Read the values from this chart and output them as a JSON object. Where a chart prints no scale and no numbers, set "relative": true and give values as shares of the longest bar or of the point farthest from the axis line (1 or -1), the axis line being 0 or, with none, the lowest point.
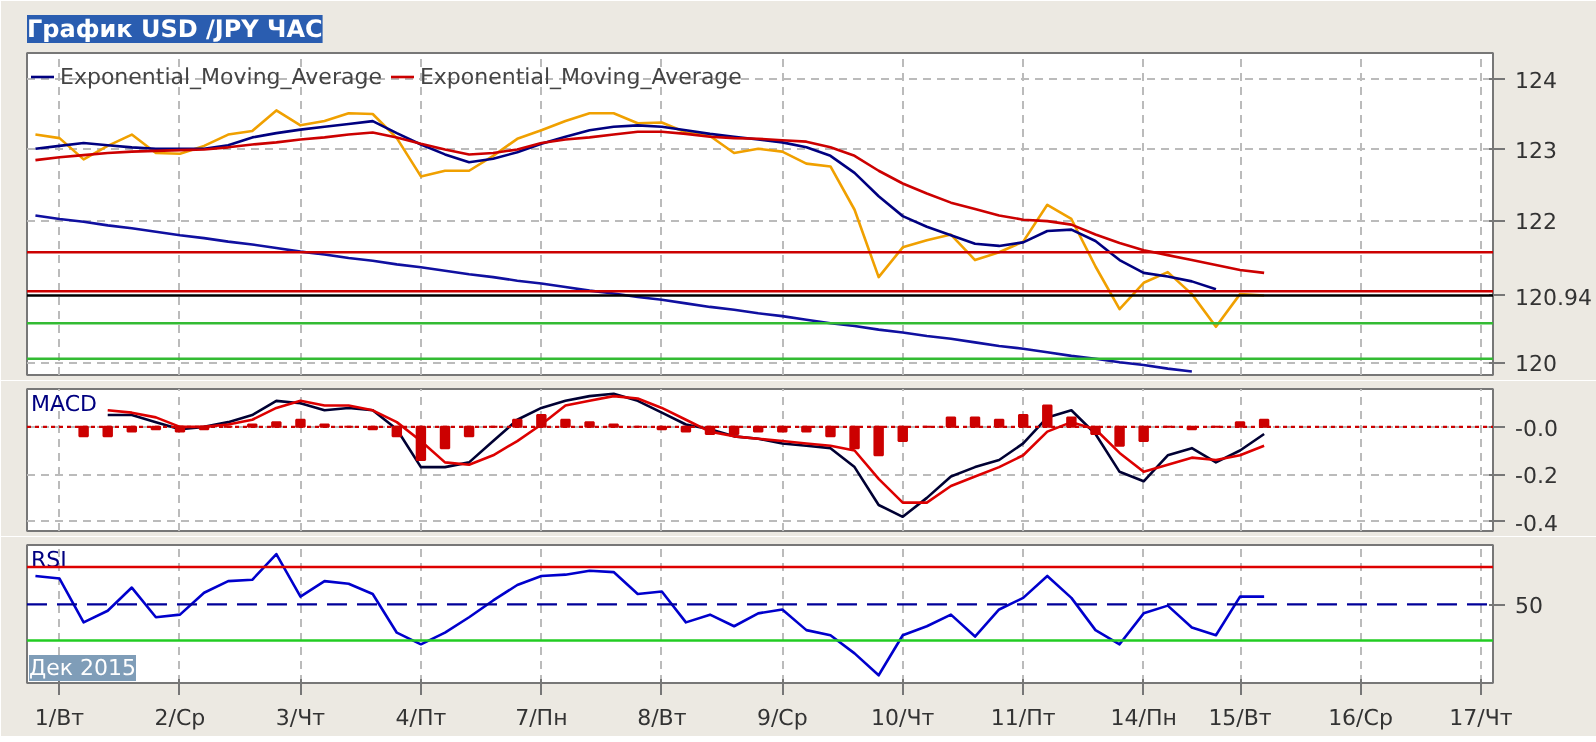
{
  "chart_data": [
    {
      "type": "line",
      "title": "График USD /JPY ЧАС",
      "ylim": [
        119.82,
        124.36
      ],
      "yticks": [
        120,
        122,
        123,
        124
      ],
      "tick_labels": "y",
      "grid": true,
      "legend": "top left",
      "categories": [
        null,
        null,
        null,
        null,
        null,
        null,
        null,
        null,
        null,
        null,
        null,
        null,
        null,
        null,
        null,
        null,
        null,
        null,
        null,
        null,
        null,
        null,
        null,
        null,
        null,
        null,
        null,
        null,
        null,
        null,
        null,
        null,
        null,
        null,
        null,
        null,
        null,
        null,
        null,
        null,
        null,
        null,
        null,
        null,
        null,
        null,
        null,
        null,
        null,
        null,
        null,
        null,
        null,
        null,
        null,
        null,
        null,
        null,
        null,
        null,
        null
      ],
      "series": [
        {
          "color": "#f0a000",
          "values": [
            123.21,
            123.16,
            122.86,
            123.05,
            123.21,
            122.95,
            122.94,
            123.05,
            123.21,
            123.26,
            123.55,
            123.34,
            123.4,
            123.51,
            123.5,
            123.16,
            122.62,
            122.7,
            122.7,
            122.91,
            123.15,
            123.27,
            123.4,
            123.51,
            123.51,
            123.37,
            123.38,
            123.24,
            123.19,
            122.95,
            123.01,
            122.97,
            122.8,
            122.76,
            122.15,
            121.2,
            121.62,
            121.72,
            121.8,
            121.44,
            121.55,
            121.7,
            122.22,
            122.02,
            121.35,
            120.75,
            121.12,
            121.27,
            120.96,
            120.5,
            120.96,
            120.94,
            null,
            null,
            null,
            null,
            null,
            null,
            null,
            null,
            null
          ]
        },
        {
          "name": "Exponential_Moving_Average",
          "color": "#000080",
          "values": [
            123.01,
            123.05,
            123.09,
            123.06,
            123.03,
            123.01,
            123.01,
            123.01,
            123.06,
            123.17,
            123.23,
            123.28,
            123.32,
            123.36,
            123.4,
            123.23,
            123.07,
            122.93,
            122.82,
            122.87,
            122.96,
            123.08,
            123.18,
            123.27,
            123.32,
            123.34,
            123.32,
            123.27,
            123.22,
            123.18,
            123.14,
            123.1,
            123.03,
            122.91,
            122.67,
            122.34,
            122.06,
            121.91,
            121.79,
            121.67,
            121.64,
            121.69,
            121.85,
            121.87,
            121.71,
            121.44,
            121.26,
            121.21,
            121.14,
            121.03,
            null,
            null,
            null,
            null,
            null,
            null,
            null,
            null,
            null,
            null,
            null
          ]
        },
        {
          "name": "Exponential_Moving_Average",
          "color": "#cc0000",
          "values": [
            122.85,
            122.89,
            122.92,
            122.95,
            122.97,
            122.98,
            122.99,
            123.0,
            123.03,
            123.07,
            123.1,
            123.14,
            123.17,
            123.21,
            123.24,
            123.17,
            123.08,
            123.0,
            122.93,
            122.95,
            123.0,
            123.09,
            123.14,
            123.17,
            123.21,
            123.25,
            123.25,
            123.22,
            123.18,
            123.16,
            123.15,
            123.13,
            123.11,
            123.03,
            122.91,
            122.7,
            122.52,
            122.38,
            122.25,
            122.16,
            122.07,
            122.01,
            121.99,
            121.94,
            121.8,
            121.68,
            121.58,
            121.51,
            121.44,
            121.37,
            121.3,
            121.26,
            null,
            null,
            null,
            null,
            null,
            null,
            null,
            null,
            null
          ]
        },
        {
          "color": "#1010a0",
          "values": [
            122.07,
            122.02,
            121.98,
            121.93,
            121.89,
            121.84,
            121.79,
            121.75,
            121.7,
            121.66,
            121.61,
            121.56,
            121.52,
            121.47,
            121.43,
            121.38,
            121.34,
            121.29,
            121.24,
            121.2,
            121.15,
            121.11,
            121.06,
            121.01,
            120.97,
            120.92,
            120.88,
            120.83,
            120.78,
            120.74,
            120.69,
            120.65,
            120.6,
            120.55,
            120.51,
            120.46,
            120.42,
            120.37,
            120.33,
            120.28,
            120.23,
            120.19,
            120.14,
            120.09,
            120.05,
            120.0,
            119.96,
            119.91,
            119.87,
            null,
            null,
            null,
            null,
            null,
            null,
            null,
            null,
            null,
            null,
            null,
            null
          ]
        }
      ],
      "ref_lines": [
        {
          "axis": "y",
          "value": 121.55,
          "color": "#cc0000"
        },
        {
          "axis": "y",
          "value": 121.0,
          "color": "#cc0000"
        },
        {
          "axis": "y",
          "value": 120.94,
          "color": "#000000",
          "label": "120.94"
        },
        {
          "axis": "y",
          "value": 120.55,
          "color": "#33bb33"
        },
        {
          "axis": "y",
          "value": 120.05,
          "color": "#33bb33"
        }
      ]
    },
    {
      "type": "line",
      "title": "MACD",
      "ylim": [
        -0.44,
        0.16
      ],
      "yticks": [
        {
          "value": 0,
          "label": "-0.0"
        },
        -0.2,
        -0.4
      ],
      "tick_labels": "y",
      "grid": true,
      "categories": [
        null,
        null,
        null,
        null,
        null,
        null,
        null,
        null,
        null,
        null,
        null,
        null,
        null,
        null,
        null,
        null,
        null,
        null,
        null,
        null,
        null,
        null,
        null,
        null,
        null,
        null,
        null,
        null,
        null,
        null,
        null,
        null,
        null,
        null,
        null,
        null,
        null,
        null,
        null,
        null,
        null,
        null,
        null,
        null,
        null,
        null,
        null,
        null,
        null,
        null,
        null,
        null,
        null,
        null,
        null,
        null,
        null,
        null,
        null,
        null,
        null
      ],
      "series": [
        {
          "type": "bar",
          "color": "#cc0000",
          "values": [
            null,
            null,
            -0.04,
            -0.04,
            -0.02,
            -0.01,
            -0.02,
            -0.01,
            0.0,
            0.01,
            0.02,
            0.03,
            0.01,
            0.0,
            -0.01,
            -0.04,
            -0.14,
            -0.09,
            -0.04,
            0.0,
            0.03,
            0.05,
            0.03,
            0.02,
            0.01,
            0.0,
            -0.01,
            -0.02,
            -0.03,
            -0.03,
            -0.02,
            -0.02,
            -0.02,
            -0.04,
            -0.09,
            -0.12,
            -0.06,
            0.0,
            0.04,
            0.04,
            0.03,
            0.05,
            0.09,
            0.04,
            -0.03,
            -0.08,
            -0.06,
            0.0,
            -0.01,
            0.0,
            0.02,
            0.03,
            null,
            null,
            null,
            null,
            null,
            null,
            null,
            null,
            null
          ]
        },
        {
          "color": "#000033",
          "values": [
            null,
            null,
            null,
            0.05,
            0.05,
            0.02,
            -0.01,
            0.0,
            0.02,
            0.05,
            0.11,
            0.1,
            0.07,
            0.08,
            0.07,
            -0.01,
            -0.17,
            -0.17,
            -0.15,
            -0.06,
            0.03,
            0.08,
            0.11,
            0.13,
            0.14,
            0.11,
            0.06,
            0.01,
            -0.01,
            -0.04,
            -0.05,
            -0.07,
            -0.08,
            -0.09,
            -0.17,
            -0.33,
            -0.38,
            -0.3,
            -0.21,
            -0.17,
            -0.14,
            -0.07,
            0.04,
            0.07,
            -0.03,
            -0.19,
            -0.23,
            -0.12,
            -0.09,
            -0.15,
            -0.1,
            -0.03,
            null,
            null,
            null,
            null,
            null,
            null,
            null,
            null,
            null
          ]
        },
        {
          "color": "#dd0000",
          "values": [
            null,
            null,
            null,
            0.07,
            0.06,
            0.04,
            0.0,
            0.0,
            0.01,
            0.03,
            0.08,
            0.11,
            0.09,
            0.09,
            0.07,
            0.02,
            -0.06,
            -0.15,
            -0.16,
            -0.12,
            -0.06,
            0.01,
            0.09,
            0.11,
            0.13,
            0.12,
            0.08,
            0.03,
            -0.02,
            -0.04,
            -0.05,
            -0.06,
            -0.07,
            -0.08,
            -0.1,
            -0.22,
            -0.32,
            -0.32,
            -0.25,
            -0.21,
            -0.17,
            -0.12,
            -0.02,
            0.02,
            -0.01,
            -0.11,
            -0.19,
            -0.16,
            -0.13,
            -0.14,
            -0.12,
            -0.08,
            null,
            null,
            null,
            null,
            null,
            null,
            null,
            null,
            null
          ]
        }
      ],
      "ref_lines": [
        {
          "axis": "y",
          "value": 0,
          "color": "#cc0000",
          "line_style": "dotted"
        }
      ]
    },
    {
      "type": "line",
      "title": "RSI",
      "relative": true,
      "grid": "x",
      "annotations": [
        "Дек 2015",
        "50"
      ],
      "categories": [
        null,
        "1/Вт",
        null,
        null,
        null,
        null,
        "2/Ср",
        null,
        null,
        null,
        null,
        "3/Чт",
        null,
        null,
        null,
        null,
        "4/Пт",
        null,
        null,
        null,
        null,
        "7/Пн",
        null,
        null,
        null,
        null,
        "8/Вт",
        null,
        null,
        null,
        null,
        "9/Ср",
        null,
        null,
        null,
        null,
        "10/Чт",
        null,
        null,
        null,
        null,
        "11/Пт",
        null,
        null,
        null,
        null,
        "14/Пн",
        null,
        null,
        null,
        "15/Вт",
        null,
        null,
        null,
        null,
        "16/Ср",
        null,
        null,
        null,
        null,
        "17/Чт"
      ],
      "series": [
        {
          "color": "#0000cc",
          "values": [
            0.83,
            0.81,
            0.47,
            0.56,
            0.74,
            0.51,
            0.53,
            0.7,
            0.79,
            0.8,
            1,
            0.67,
            0.79,
            0.77,
            0.69,
            0.39,
            0.3,
            0.39,
            0.51,
            0.64,
            0.76,
            0.83,
            0.84,
            0.87,
            0.86,
            0.69,
            0.71,
            0.47,
            0.53,
            0.44,
            0.54,
            0.57,
            0.41,
            0.37,
            0.23,
            0.06,
            0.37,
            0.44,
            0.53,
            0.36,
            0.57,
            0.66,
            0.83,
            0.66,
            0.41,
            0.3,
            0.54,
            0.6,
            0.43,
            0.37,
            0.67,
            0.67,
            null,
            null,
            null,
            null,
            null,
            null,
            null,
            null,
            null
          ]
        }
      ],
      "ref_lines": [
        {
          "axis": "y",
          "value": 0.9,
          "color": "#dd0000"
        },
        {
          "axis": "y",
          "value": 0.61,
          "color": "#000099",
          "line_style": "dashed"
        },
        {
          "axis": "y",
          "value": 0.33,
          "color": "#22cc22"
        }
      ]
    }
  ]
}
